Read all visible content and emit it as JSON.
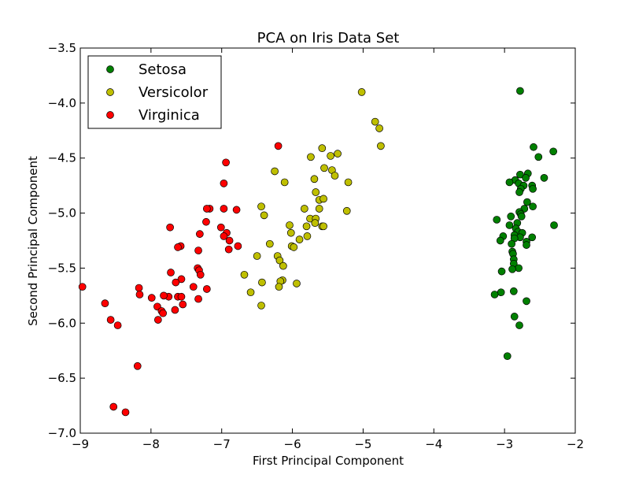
{
  "chart_data": {
    "type": "scatter",
    "title": "PCA on Iris Data Set",
    "xlabel": "First Principal Component",
    "ylabel": "Second Principal Component",
    "xlim": [
      -9,
      -2
    ],
    "ylim": [
      -7.0,
      -3.5
    ],
    "xticks": [
      -9,
      -8,
      -7,
      -6,
      -5,
      -4,
      -3,
      -2
    ],
    "xtick_labels": [
      "−9",
      "−8",
      "−7",
      "−6",
      "−5",
      "−4",
      "−3",
      "−2"
    ],
    "yticks": [
      -3.5,
      -4.0,
      -4.5,
      -5.0,
      -5.5,
      -6.0,
      -6.5,
      -7.0
    ],
    "ytick_labels": [
      "−3.5",
      "−4.0",
      "−4.5",
      "−5.0",
      "−5.5",
      "−6.0",
      "−6.5",
      "−7.0"
    ],
    "grid": false,
    "legend_position": "top-left",
    "series": [
      {
        "name": "Setosa",
        "color": "#008000",
        "points": [
          [
            -2.78,
            -3.89
          ],
          [
            -2.59,
            -4.4
          ],
          [
            -2.31,
            -4.44
          ],
          [
            -2.52,
            -4.49
          ],
          [
            -2.67,
            -4.64
          ],
          [
            -2.78,
            -4.65
          ],
          [
            -2.85,
            -4.7
          ],
          [
            -2.7,
            -4.68
          ],
          [
            -2.44,
            -4.68
          ],
          [
            -2.93,
            -4.72
          ],
          [
            -2.8,
            -4.73
          ],
          [
            -2.73,
            -4.75
          ],
          [
            -2.61,
            -4.75
          ],
          [
            -2.77,
            -4.78
          ],
          [
            -2.6,
            -4.78
          ],
          [
            -2.79,
            -4.81
          ],
          [
            -2.68,
            -4.9
          ],
          [
            -2.72,
            -4.96
          ],
          [
            -2.6,
            -4.94
          ],
          [
            -2.79,
            -4.99
          ],
          [
            -2.77,
            -5.01
          ],
          [
            -2.91,
            -5.03
          ],
          [
            -2.76,
            -5.03
          ],
          [
            -3.11,
            -5.06
          ],
          [
            -2.82,
            -5.09
          ],
          [
            -2.93,
            -5.11
          ],
          [
            -2.84,
            -5.14
          ],
          [
            -2.81,
            -5.17
          ],
          [
            -2.75,
            -5.18
          ],
          [
            -2.86,
            -5.2
          ],
          [
            -3.02,
            -5.21
          ],
          [
            -2.78,
            -5.22
          ],
          [
            -2.61,
            -5.22
          ],
          [
            -3.06,
            -5.25
          ],
          [
            -2.86,
            -5.23
          ],
          [
            -2.69,
            -5.26
          ],
          [
            -2.9,
            -5.28
          ],
          [
            -2.69,
            -5.29
          ],
          [
            -2.3,
            -5.11
          ],
          [
            -2.89,
            -5.35
          ],
          [
            -2.88,
            -5.37
          ],
          [
            -2.87,
            -5.42
          ],
          [
            -2.87,
            -5.46
          ],
          [
            -2.8,
            -5.5
          ],
          [
            -2.89,
            -5.51
          ],
          [
            -3.04,
            -5.53
          ],
          [
            -3.05,
            -5.72
          ],
          [
            -3.14,
            -5.74
          ],
          [
            -2.87,
            -5.71
          ],
          [
            -2.69,
            -5.8
          ],
          [
            -2.86,
            -5.94
          ],
          [
            -2.79,
            -6.02
          ],
          [
            -2.96,
            -6.3
          ]
        ]
      },
      {
        "name": "Versicolor",
        "color": "#bfbf00",
        "points": [
          [
            -5.02,
            -3.9
          ],
          [
            -4.83,
            -4.17
          ],
          [
            -4.77,
            -4.23
          ],
          [
            -4.75,
            -4.39
          ],
          [
            -5.58,
            -4.41
          ],
          [
            -5.74,
            -4.49
          ],
          [
            -5.46,
            -4.48
          ],
          [
            -5.36,
            -4.46
          ],
          [
            -5.55,
            -4.59
          ],
          [
            -6.25,
            -4.62
          ],
          [
            -5.44,
            -4.61
          ],
          [
            -5.4,
            -4.66
          ],
          [
            -5.21,
            -4.72
          ],
          [
            -6.11,
            -4.72
          ],
          [
            -5.69,
            -4.69
          ],
          [
            -5.67,
            -4.81
          ],
          [
            -5.62,
            -4.88
          ],
          [
            -5.56,
            -4.87
          ],
          [
            -6.44,
            -4.94
          ],
          [
            -5.83,
            -4.96
          ],
          [
            -5.62,
            -4.96
          ],
          [
            -5.23,
            -4.98
          ],
          [
            -6.4,
            -5.02
          ],
          [
            -5.75,
            -5.05
          ],
          [
            -5.67,
            -5.05
          ],
          [
            -6.04,
            -5.11
          ],
          [
            -5.68,
            -5.09
          ],
          [
            -5.8,
            -5.12
          ],
          [
            -5.58,
            -5.12
          ],
          [
            -5.56,
            -5.12
          ],
          [
            -6.02,
            -5.18
          ],
          [
            -5.79,
            -5.21
          ],
          [
            -5.9,
            -5.24
          ],
          [
            -6.01,
            -5.3
          ],
          [
            -6.32,
            -5.28
          ],
          [
            -5.98,
            -5.31
          ],
          [
            -6.5,
            -5.39
          ],
          [
            -6.21,
            -5.39
          ],
          [
            -6.18,
            -5.43
          ],
          [
            -6.13,
            -5.48
          ],
          [
            -6.68,
            -5.56
          ],
          [
            -6.14,
            -5.61
          ],
          [
            -6.43,
            -5.63
          ],
          [
            -6.17,
            -5.62
          ],
          [
            -5.94,
            -5.64
          ],
          [
            -6.19,
            -5.67
          ],
          [
            -6.59,
            -5.72
          ],
          [
            -6.44,
            -5.84
          ]
        ]
      },
      {
        "name": "Virginica",
        "color": "#ff0000",
        "points": [
          [
            -6.2,
            -4.39
          ],
          [
            -6.94,
            -4.54
          ],
          [
            -6.97,
            -4.73
          ],
          [
            -7.17,
            -4.96
          ],
          [
            -7.21,
            -4.96
          ],
          [
            -6.97,
            -4.96
          ],
          [
            -6.79,
            -4.97
          ],
          [
            -7.22,
            -5.08
          ],
          [
            -7.01,
            -5.13
          ],
          [
            -7.73,
            -5.13
          ],
          [
            -6.93,
            -5.18
          ],
          [
            -6.97,
            -5.21
          ],
          [
            -7.31,
            -5.19
          ],
          [
            -6.89,
            -5.25
          ],
          [
            -6.77,
            -5.3
          ],
          [
            -7.58,
            -5.3
          ],
          [
            -7.62,
            -5.31
          ],
          [
            -6.9,
            -5.33
          ],
          [
            -7.33,
            -5.34
          ],
          [
            -7.34,
            -5.5
          ],
          [
            -7.32,
            -5.52
          ],
          [
            -7.72,
            -5.54
          ],
          [
            -7.3,
            -5.56
          ],
          [
            -7.57,
            -5.6
          ],
          [
            -7.65,
            -5.63
          ],
          [
            -7.4,
            -5.67
          ],
          [
            -8.17,
            -5.68
          ],
          [
            -7.21,
            -5.69
          ],
          [
            -8.97,
            -5.67
          ],
          [
            -8.16,
            -5.74
          ],
          [
            -7.99,
            -5.77
          ],
          [
            -7.62,
            -5.76
          ],
          [
            -7.75,
            -5.76
          ],
          [
            -7.82,
            -5.75
          ],
          [
            -7.57,
            -5.76
          ],
          [
            -7.33,
            -5.78
          ],
          [
            -8.65,
            -5.82
          ],
          [
            -7.55,
            -5.83
          ],
          [
            -7.91,
            -5.85
          ],
          [
            -7.66,
            -5.88
          ],
          [
            -7.85,
            -5.89
          ],
          [
            -7.83,
            -5.91
          ],
          [
            -7.9,
            -5.97
          ],
          [
            -8.57,
            -5.97
          ],
          [
            -8.47,
            -6.02
          ],
          [
            -8.19,
            -6.39
          ],
          [
            -8.53,
            -6.76
          ],
          [
            -8.36,
            -6.81
          ]
        ]
      }
    ]
  }
}
